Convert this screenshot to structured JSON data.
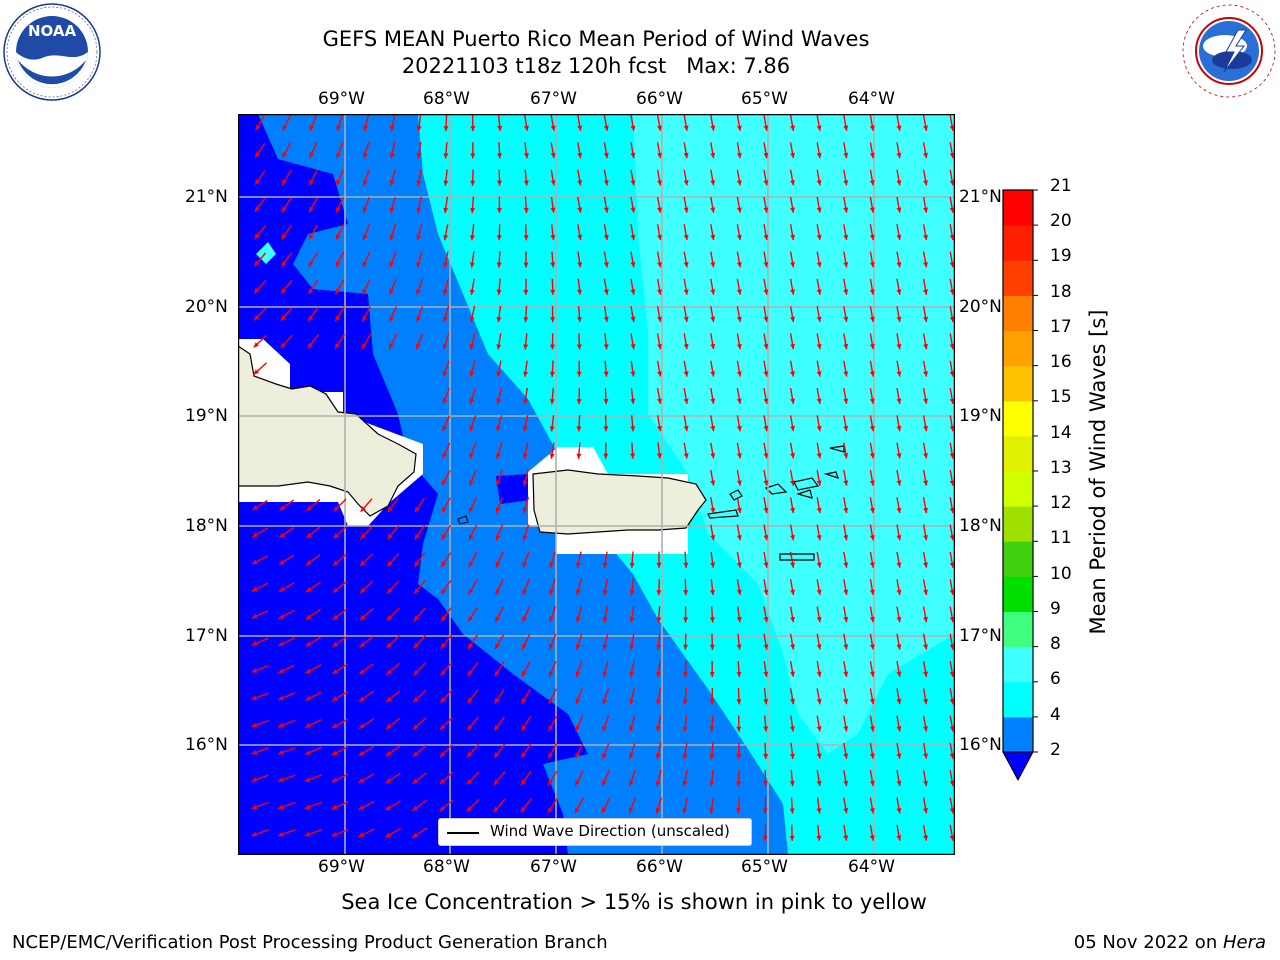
{
  "header": {
    "title_line1": "GEFS MEAN Puerto Rico Mean Period of Wind Waves",
    "title_line2": "20221103 t18z 120h fcst   Max: 7.86"
  },
  "logos": {
    "left": {
      "name": "NOAA",
      "ring_text": "NATIONAL OCEANIC AND ATMOSPHERIC ADMINISTRATION · U.S. DEPARTMENT OF COMMERCE"
    },
    "right": {
      "name": "NATIONAL WEATHER SERVICE"
    }
  },
  "map": {
    "lon_labels": [
      "69°W",
      "68°W",
      "67°W",
      "66°W",
      "65°W",
      "64°W"
    ],
    "lat_labels": [
      "21°N",
      "20°N",
      "19°N",
      "18°N",
      "17°N",
      "16°N"
    ],
    "legend_label": "Wind Wave Direction (unscaled)",
    "colors": {
      "ocean_dark": "#0000ff",
      "ocean_mid": "#0080ff",
      "ocean_light": "#00ffff",
      "ocean_lighter": "#40ffff",
      "land": "#eeeedc",
      "arrow": "#ff0000",
      "grid": "#b0b0b0"
    }
  },
  "colorbar": {
    "label": "Mean Period of Wind Waves [s]",
    "ticks": [
      "2",
      "4",
      "6",
      "8",
      "9",
      "10",
      "11",
      "12",
      "13",
      "14",
      "15",
      "16",
      "17",
      "18",
      "19",
      "20",
      "21"
    ],
    "colors": [
      "#0080ff",
      "#00ffff",
      "#40ffff",
      "#a0ffff",
      "#40ff80",
      "#00e000",
      "#40d010",
      "#a0e000",
      "#d0ff00",
      "#e0f000",
      "#ffff00",
      "#ffc000",
      "#ffa000",
      "#ff8000",
      "#ff4000",
      "#ff2000",
      "#ff0000"
    ],
    "underflow_color": "#0000ff"
  },
  "footer": {
    "note": "Sea Ice Concentration > 15% is shown in pink to yellow",
    "left": "NCEP/EMC/Verification Post Processing Product Generation Branch",
    "right_date": "05 Nov 2022 on ",
    "right_host": "Hera"
  }
}
